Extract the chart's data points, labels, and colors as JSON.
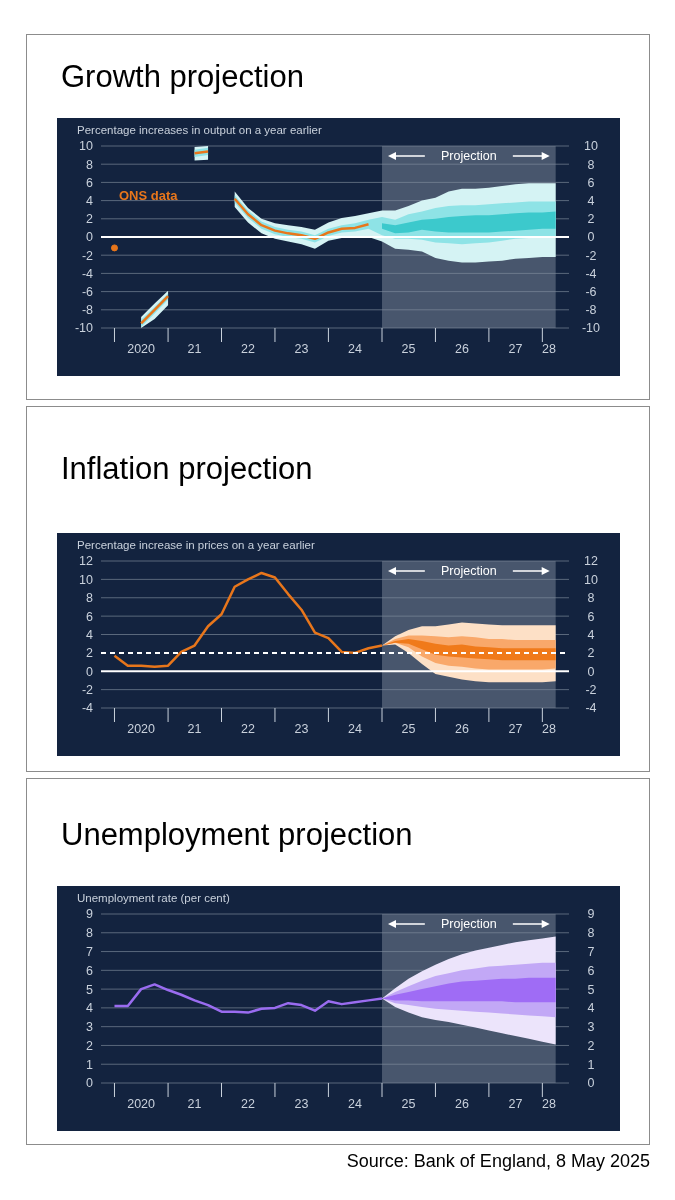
{
  "chart_data": [
    {
      "type": "line",
      "title": "Growth projection",
      "ylabel": "Percentage increases in output on a year earlier",
      "xlim": [
        "2019-10",
        "2028-07"
      ],
      "xticks": [
        {
          "value": "2020-01",
          "label": null
        },
        {
          "value": "2020-07",
          "label": "2020"
        },
        {
          "value": "2021-01",
          "label": null
        },
        {
          "value": "2021-07",
          "label": "21"
        },
        {
          "value": "2022-01",
          "label": null
        },
        {
          "value": "2022-07",
          "label": "22"
        },
        {
          "value": "2023-01",
          "label": null
        },
        {
          "value": "2023-07",
          "label": "23"
        },
        {
          "value": "2024-01",
          "label": null
        },
        {
          "value": "2024-07",
          "label": "24"
        },
        {
          "value": "2025-01",
          "label": null
        },
        {
          "value": "2025-07",
          "label": "25"
        },
        {
          "value": "2026-01",
          "label": null
        },
        {
          "value": "2026-07",
          "label": "26"
        },
        {
          "value": "2027-01",
          "label": null
        },
        {
          "value": "2027-07",
          "label": "27"
        },
        {
          "value": "2028-01",
          "label": null
        },
        {
          "value": "2028-02-15",
          "label": "28"
        }
      ],
      "ylim": [
        -10,
        10
      ],
      "yticks": [
        -10,
        -8,
        -6,
        -4,
        -2,
        0,
        2,
        4,
        6,
        8,
        10
      ],
      "y2lim": [
        -10,
        10
      ],
      "y2ticks": [
        -10,
        -8,
        -6,
        -4,
        -2,
        0,
        2,
        4,
        6,
        8,
        10
      ],
      "grid": "y",
      "ref_lines": [
        {
          "axis": "y",
          "value": 0,
          "color": "#ffffff"
        }
      ],
      "bands": [
        {
          "axis": "x",
          "from": "2025-01",
          "to": "2028-04",
          "label": "Projection",
          "color": "#7d8a9b"
        }
      ],
      "series": [
        {
          "color": "#d5f3f4",
          "x": [
            "2020-07",
            "2020-10",
            "2021-01",
            "2021-04",
            "2021-07",
            "2021-10",
            "2022-01",
            "2022-04",
            "2022-07",
            "2022-10",
            "2023-01",
            "2023-04",
            "2023-07",
            "2023-10",
            "2024-01",
            "2024-04",
            "2024-07",
            "2024-10",
            "2025-01",
            "2025-04",
            "2025-07",
            "2025-10",
            "2026-01",
            "2026-04",
            "2026-07",
            "2026-10",
            "2027-01",
            "2027-04",
            "2027-07",
            "2027-10",
            "2028-01",
            "2028-04"
          ],
          "values": [
            null,
            null,
            null,
            null,
            null,
            null,
            null,
            null,
            null,
            null,
            null,
            null,
            null,
            null,
            null,
            null,
            null,
            null,
            null,
            null,
            null,
            null,
            null,
            null,
            null,
            null,
            null,
            null,
            null,
            null,
            null,
            null
          ],
          "upper": [
            -8.8,
            -7.3,
            -5.9,
            null,
            9.9,
            10,
            null,
            5.0,
            3.2,
            2.0,
            1.5,
            1.3,
            1.1,
            0.8,
            1.6,
            2.1,
            2.3,
            2.6,
            2.9,
            2.9,
            3.4,
            4.0,
            4.3,
            5.0,
            5.3,
            5.3,
            5.4,
            5.6,
            5.8,
            5.9,
            5.9,
            5.9
          ],
          "lower": [
            -10,
            -9.0,
            -7.5,
            null,
            8.4,
            8.5,
            null,
            3.3,
            1.6,
            0.4,
            -0.2,
            -0.5,
            -0.8,
            -1.3,
            -0.4,
            -0.1,
            -0.1,
            0.0,
            -0.5,
            -1.3,
            -1.4,
            -1.6,
            -2.3,
            -2.6,
            -2.8,
            -2.8,
            -2.7,
            -2.6,
            -2.4,
            -2.3,
            -2.2,
            -2.2
          ]
        },
        {
          "color": "#8ee3e6",
          "x": [
            "2020-07",
            "2020-10",
            "2021-01",
            "2021-04",
            "2021-07",
            "2021-10",
            "2022-01",
            "2022-04",
            "2022-07",
            "2022-10",
            "2023-01",
            "2023-04",
            "2023-07",
            "2023-10",
            "2024-01",
            "2024-04",
            "2024-07",
            "2024-10",
            "2025-01",
            "2025-04",
            "2025-07",
            "2025-10",
            "2026-01",
            "2026-04",
            "2026-07",
            "2026-10",
            "2027-01",
            "2027-04",
            "2027-07",
            "2027-10",
            "2028-01",
            "2028-04"
          ],
          "values": [
            null,
            null,
            null,
            null,
            null,
            null,
            null,
            null,
            null,
            null,
            null,
            null,
            null,
            null,
            null,
            null,
            null,
            null,
            null,
            null,
            null,
            null,
            null,
            null,
            null,
            null,
            null,
            null,
            null,
            null,
            null,
            null
          ],
          "upper": [
            -9.1,
            -7.7,
            -6.2,
            null,
            9.6,
            9.8,
            null,
            4.6,
            2.9,
            1.7,
            1.1,
            0.8,
            0.6,
            0.2,
            0.9,
            1.3,
            1.5,
            1.9,
            2.2,
            1.9,
            2.5,
            2.8,
            3.2,
            3.4,
            3.5,
            3.5,
            3.6,
            3.7,
            3.8,
            3.9,
            3.9,
            3.9
          ],
          "lower": [
            -9.9,
            -8.4,
            -6.9,
            null,
            8.8,
            9.0,
            null,
            3.8,
            2.1,
            0.9,
            0.3,
            0.0,
            -0.2,
            -0.6,
            0.1,
            0.5,
            0.6,
            0.9,
            0.2,
            -0.2,
            -0.2,
            -0.3,
            -0.6,
            -0.7,
            -0.8,
            -0.7,
            -0.6,
            -0.4,
            -0.2,
            -0.1,
            0,
            0
          ]
        },
        {
          "color": "#3cc9cc",
          "x": [
            "2025-01",
            "2025-04",
            "2025-07",
            "2025-10",
            "2026-01",
            "2026-04",
            "2026-07",
            "2026-10",
            "2027-01",
            "2027-04",
            "2027-07",
            "2027-10",
            "2028-01",
            "2028-04"
          ],
          "values": [
            null,
            null,
            null,
            null,
            null,
            null,
            null,
            null,
            null,
            null,
            null,
            null,
            null,
            null
          ],
          "upper": [
            1.5,
            1.3,
            1.6,
            1.9,
            2.0,
            2.2,
            2.3,
            2.4,
            2.4,
            2.5,
            2.6,
            2.7,
            2.7,
            2.8
          ],
          "lower": [
            0.9,
            0.4,
            0.5,
            0.8,
            0.6,
            0.5,
            0.5,
            0.5,
            0.5,
            0.6,
            0.7,
            0.8,
            0.9,
            0.9
          ]
        },
        {
          "name": "ONS data",
          "color": "#e8761b",
          "x": [
            "2020-01",
            "2020-04",
            "2020-07",
            "2020-10",
            "2021-01",
            "2021-04",
            "2021-07",
            "2021-10",
            "2022-01",
            "2022-04",
            "2022-07",
            "2022-10",
            "2023-01",
            "2023-04",
            "2023-07",
            "2023-10",
            "2024-01",
            "2024-04",
            "2024-07",
            "2024-10"
          ],
          "values": [
            -1.2,
            null,
            -9.5,
            -8.0,
            -6.5,
            null,
            9.2,
            9.4,
            null,
            4.2,
            2.5,
            1.3,
            0.7,
            0.4,
            0.2,
            -0.2,
            0.5,
            0.9,
            1.0,
            1.4
          ]
        }
      ]
    },
    {
      "type": "line",
      "title": "Inflation projection",
      "ylabel": "Percentage increase in prices on a year earlier",
      "xlim": [
        "2019-10",
        "2028-07"
      ],
      "xticks": [
        {
          "value": "2020-01",
          "label": null
        },
        {
          "value": "2020-07",
          "label": "2020"
        },
        {
          "value": "2021-01",
          "label": null
        },
        {
          "value": "2021-07",
          "label": "21"
        },
        {
          "value": "2022-01",
          "label": null
        },
        {
          "value": "2022-07",
          "label": "22"
        },
        {
          "value": "2023-01",
          "label": null
        },
        {
          "value": "2023-07",
          "label": "23"
        },
        {
          "value": "2024-01",
          "label": null
        },
        {
          "value": "2024-07",
          "label": "24"
        },
        {
          "value": "2025-01",
          "label": null
        },
        {
          "value": "2025-07",
          "label": "25"
        },
        {
          "value": "2026-01",
          "label": null
        },
        {
          "value": "2026-07",
          "label": "26"
        },
        {
          "value": "2027-01",
          "label": null
        },
        {
          "value": "2027-07",
          "label": "27"
        },
        {
          "value": "2028-01",
          "label": null
        },
        {
          "value": "2028-02-15",
          "label": "28"
        }
      ],
      "ylim": [
        -4,
        12
      ],
      "yticks": [
        -4,
        -2,
        0,
        2,
        4,
        6,
        8,
        10,
        12
      ],
      "y2lim": [
        -4,
        12
      ],
      "y2ticks": [
        -4,
        -2,
        0,
        2,
        4,
        6,
        8,
        10,
        12
      ],
      "grid": "y",
      "ref_lines": [
        {
          "axis": "y",
          "value": 0,
          "color": "#ffffff"
        },
        {
          "axis": "y",
          "value": 2,
          "color": "#ffffff",
          "line_style": "dashed"
        }
      ],
      "bands": [
        {
          "axis": "x",
          "from": "2025-01",
          "to": "2028-04",
          "label": "Projection",
          "color": "#7d8a9b"
        }
      ],
      "series": [
        {
          "color": "#fde0c6",
          "x": [
            "2025-01",
            "2025-04",
            "2025-07",
            "2025-10",
            "2026-01",
            "2026-04",
            "2026-07",
            "2026-10",
            "2027-01",
            "2027-04",
            "2027-07",
            "2027-10",
            "2028-01",
            "2028-04"
          ],
          "values": [
            null,
            null,
            null,
            null,
            null,
            null,
            null,
            null,
            null,
            null,
            null,
            null,
            null,
            null
          ],
          "upper": [
            2.8,
            3.8,
            4.5,
            4.9,
            4.9,
            5.1,
            5.3,
            5.2,
            5.1,
            5.0,
            5.0,
            5.0,
            5.0,
            5.0
          ],
          "lower": [
            2.8,
            2.9,
            2.0,
            0.8,
            -0.3,
            -0.6,
            -0.9,
            -1.1,
            -1.2,
            -1.2,
            -1.2,
            -1.2,
            -1.2,
            -1.1
          ]
        },
        {
          "color": "#f9a86a",
          "x": [
            "2025-01",
            "2025-04",
            "2025-07",
            "2025-10",
            "2026-01",
            "2026-04",
            "2026-07",
            "2026-10",
            "2027-01",
            "2027-04",
            "2027-07",
            "2027-10",
            "2028-01",
            "2028-04"
          ],
          "values": [
            null,
            null,
            null,
            null,
            null,
            null,
            null,
            null,
            null,
            null,
            null,
            null,
            null,
            null
          ],
          "upper": [
            2.8,
            3.5,
            3.9,
            3.9,
            3.8,
            3.7,
            3.8,
            3.7,
            3.5,
            3.5,
            3.4,
            3.4,
            3.4,
            3.4
          ],
          "lower": [
            2.8,
            3.1,
            2.6,
            1.6,
            0.9,
            0.6,
            0.5,
            0.3,
            0.2,
            0.2,
            0.2,
            0.2,
            0.2,
            0.3
          ]
        },
        {
          "color": "#f07a1a",
          "x": [
            "2025-01",
            "2025-04",
            "2025-07",
            "2025-10",
            "2026-01",
            "2026-04",
            "2026-07",
            "2026-10",
            "2027-01",
            "2027-04",
            "2027-07",
            "2027-10",
            "2028-01",
            "2028-04"
          ],
          "values": [
            null,
            null,
            null,
            null,
            null,
            null,
            null,
            null,
            null,
            null,
            null,
            null,
            null,
            null
          ],
          "upper": [
            2.8,
            3.3,
            3.5,
            3.3,
            3.0,
            2.8,
            2.9,
            2.7,
            2.6,
            2.5,
            2.5,
            2.5,
            2.5,
            2.5
          ],
          "lower": [
            2.8,
            3.1,
            3.0,
            2.4,
            1.8,
            1.6,
            1.5,
            1.4,
            1.3,
            1.2,
            1.2,
            1.2,
            1.2,
            1.2
          ]
        },
        {
          "color": "#e8761b",
          "x": [
            "2020-01",
            "2020-04",
            "2020-07",
            "2020-10",
            "2021-01",
            "2021-04",
            "2021-07",
            "2021-10",
            "2022-01",
            "2022-04",
            "2022-07",
            "2022-10",
            "2023-01",
            "2023-04",
            "2023-07",
            "2023-10",
            "2024-01",
            "2024-04",
            "2024-07",
            "2024-10",
            "2025-01"
          ],
          "values": [
            1.7,
            0.6,
            0.6,
            0.5,
            0.6,
            2.1,
            2.8,
            4.9,
            6.2,
            9.2,
            10.0,
            10.7,
            10.2,
            8.4,
            6.7,
            4.2,
            3.6,
            2.1,
            2.0,
            2.5,
            2.8
          ]
        }
      ]
    },
    {
      "type": "line",
      "title": "Unemployment projection",
      "ylabel": "Unemployment rate (per cent)",
      "xlim": [
        "2019-10",
        "2028-07"
      ],
      "xticks": [
        {
          "value": "2020-01",
          "label": null
        },
        {
          "value": "2020-07",
          "label": "2020"
        },
        {
          "value": "2021-01",
          "label": null
        },
        {
          "value": "2021-07",
          "label": "21"
        },
        {
          "value": "2022-01",
          "label": null
        },
        {
          "value": "2022-07",
          "label": "22"
        },
        {
          "value": "2023-01",
          "label": null
        },
        {
          "value": "2023-07",
          "label": "23"
        },
        {
          "value": "2024-01",
          "label": null
        },
        {
          "value": "2024-07",
          "label": "24"
        },
        {
          "value": "2025-01",
          "label": null
        },
        {
          "value": "2025-07",
          "label": "25"
        },
        {
          "value": "2026-01",
          "label": null
        },
        {
          "value": "2026-07",
          "label": "26"
        },
        {
          "value": "2027-01",
          "label": null
        },
        {
          "value": "2027-07",
          "label": "27"
        },
        {
          "value": "2028-01",
          "label": null
        },
        {
          "value": "2028-02-15",
          "label": "28"
        }
      ],
      "ylim": [
        0,
        9
      ],
      "yticks": [
        0,
        1,
        2,
        3,
        4,
        5,
        6,
        7,
        8,
        9
      ],
      "y2lim": [
        0,
        9
      ],
      "y2ticks": [
        0,
        1,
        2,
        3,
        4,
        5,
        6,
        7,
        8,
        9
      ],
      "grid": "y",
      "bands": [
        {
          "axis": "x",
          "from": "2025-01",
          "to": "2028-04",
          "label": "Projection",
          "color": "#7d8a9b"
        }
      ],
      "annotations": [
        "Source: Bank of England, 8 May 2025"
      ],
      "series": [
        {
          "color": "#ece4fb",
          "x": [
            "2025-01",
            "2025-04",
            "2025-07",
            "2025-10",
            "2026-01",
            "2026-04",
            "2026-07",
            "2026-10",
            "2027-01",
            "2027-04",
            "2027-07",
            "2027-10",
            "2028-01",
            "2028-04"
          ],
          "values": [
            null,
            null,
            null,
            null,
            null,
            null,
            null,
            null,
            null,
            null,
            null,
            null,
            null,
            null
          ],
          "upper": [
            4.5,
            5.05,
            5.55,
            5.95,
            6.3,
            6.6,
            6.85,
            7.05,
            7.2,
            7.35,
            7.5,
            7.6,
            7.7,
            7.8
          ],
          "lower": [
            4.5,
            4.05,
            3.75,
            3.5,
            3.35,
            3.25,
            3.1,
            2.95,
            2.8,
            2.65,
            2.5,
            2.35,
            2.2,
            2.05
          ]
        },
        {
          "color": "#c2a8f6",
          "x": [
            "2025-01",
            "2025-04",
            "2025-07",
            "2025-10",
            "2026-01",
            "2026-04",
            "2026-07",
            "2026-10",
            "2027-01",
            "2027-04",
            "2027-07",
            "2027-10",
            "2028-01",
            "2028-04"
          ],
          "values": [
            null,
            null,
            null,
            null,
            null,
            null,
            null,
            null,
            null,
            null,
            null,
            null,
            null,
            null
          ],
          "upper": [
            4.5,
            4.85,
            5.15,
            5.45,
            5.7,
            5.85,
            6.0,
            6.1,
            6.2,
            6.25,
            6.3,
            6.35,
            6.4,
            6.4
          ],
          "lower": [
            4.5,
            4.25,
            4.15,
            4.05,
            3.95,
            3.9,
            3.85,
            3.8,
            3.75,
            3.7,
            3.65,
            3.6,
            3.55,
            3.5
          ]
        },
        {
          "color": "#9f6cf5",
          "x": [
            "2025-01",
            "2025-04",
            "2025-07",
            "2025-10",
            "2026-01",
            "2026-04",
            "2026-07",
            "2026-10",
            "2027-01",
            "2027-04",
            "2027-07",
            "2027-10",
            "2028-01",
            "2028-04"
          ],
          "values": [
            null,
            null,
            null,
            null,
            null,
            null,
            null,
            null,
            null,
            null,
            null,
            null,
            null,
            null
          ],
          "upper": [
            4.5,
            4.7,
            4.85,
            5.0,
            5.15,
            5.3,
            5.4,
            5.45,
            5.5,
            5.55,
            5.55,
            5.6,
            5.6,
            5.6
          ],
          "lower": [
            4.5,
            4.4,
            4.4,
            4.35,
            4.35,
            4.35,
            4.35,
            4.35,
            4.35,
            4.35,
            4.3,
            4.3,
            4.3,
            4.3
          ]
        },
        {
          "color": "#9a6cf0",
          "x": [
            "2020-01",
            "2020-04",
            "2020-07",
            "2020-10",
            "2021-01",
            "2021-04",
            "2021-07",
            "2021-10",
            "2022-01",
            "2022-04",
            "2022-07",
            "2022-10",
            "2023-01",
            "2023-04",
            "2023-07",
            "2023-10",
            "2024-01",
            "2024-04",
            "2024-07",
            "2024-10",
            "2025-01"
          ],
          "values": [
            4.1,
            4.1,
            5.0,
            5.25,
            4.95,
            4.7,
            4.4,
            4.15,
            3.8,
            3.8,
            3.75,
            3.95,
            4.0,
            4.25,
            4.15,
            3.85,
            4.35,
            4.2,
            4.3,
            4.4,
            4.5
          ]
        }
      ]
    }
  ]
}
